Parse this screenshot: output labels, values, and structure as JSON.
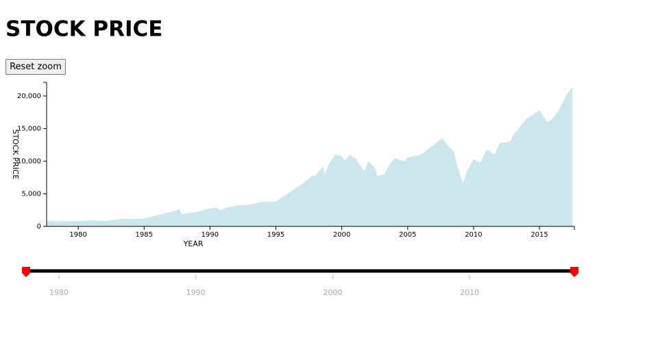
{
  "title": "STOCK PRICE",
  "reset_button": "Reset zoom",
  "chart_data": {
    "type": "area",
    "color": "#cde6ec",
    "x_label": "YEAR",
    "y_label": "STOCK PRICE",
    "x": [
      1977.6,
      1980,
      1981,
      1982,
      1982.8,
      1983.5,
      1984,
      1985,
      1986,
      1987,
      1987.7,
      1987.9,
      1988,
      1989,
      1989.8,
      1990.5,
      1990.8,
      1991,
      1992,
      1993,
      1994,
      1995,
      1996,
      1997,
      1997.8,
      1998,
      1998.6,
      1998.7,
      1999,
      1999.5,
      2000,
      2000.2,
      2000.6,
      2001,
      2001.7,
      2002,
      2002.5,
      2002.7,
      2003.2,
      2003.6,
      2004,
      2004.8,
      2005,
      2006,
      2007,
      2007.6,
      2008,
      2008.5,
      2008.8,
      2009.2,
      2009.5,
      2010,
      2010.5,
      2011,
      2011.6,
      2012,
      2012.8,
      2013,
      2014,
      2015,
      2015.6,
      2016,
      2016.5,
      2017,
      2017.5
    ],
    "values": [
      800,
      820,
      950,
      800,
      1050,
      1200,
      1150,
      1200,
      1700,
      2200,
      2600,
      1800,
      1950,
      2200,
      2700,
      2900,
      2450,
      2700,
      3200,
      3300,
      3800,
      3800,
      5200,
      6500,
      7800,
      7800,
      9200,
      7800,
      9500,
      11000,
      10800,
      10000,
      11000,
      10500,
      8500,
      10000,
      9000,
      7700,
      8000,
      9300,
      10500,
      10000,
      10600,
      11000,
      12500,
      13600,
      12500,
      11500,
      9000,
      6600,
      8500,
      10300,
      9800,
      11800,
      11000,
      12800,
      13000,
      14000,
      16500,
      17800,
      16000,
      16500,
      18000,
      20000,
      21400
    ],
    "xlim": [
      1977.6,
      2017.65
    ],
    "xticks": [
      1980,
      1985,
      1990,
      1995,
      2000,
      2005,
      2010,
      2015
    ],
    "ylim": [
      0,
      22100
    ],
    "yticks": [
      0,
      {
        "value": 5000,
        "label": "5,000"
      },
      {
        "value": 10000,
        "label": "10,000"
      },
      {
        "value": 15000,
        "label": "15,000"
      },
      {
        "value": 20000,
        "label": "20,000"
      }
    ]
  },
  "slider": {
    "xlim": [
      1977.6,
      2017.65
    ],
    "xticks": [
      1980,
      1990,
      2000,
      2010
    ],
    "selection": [
      1977.6,
      2017.65
    ]
  }
}
